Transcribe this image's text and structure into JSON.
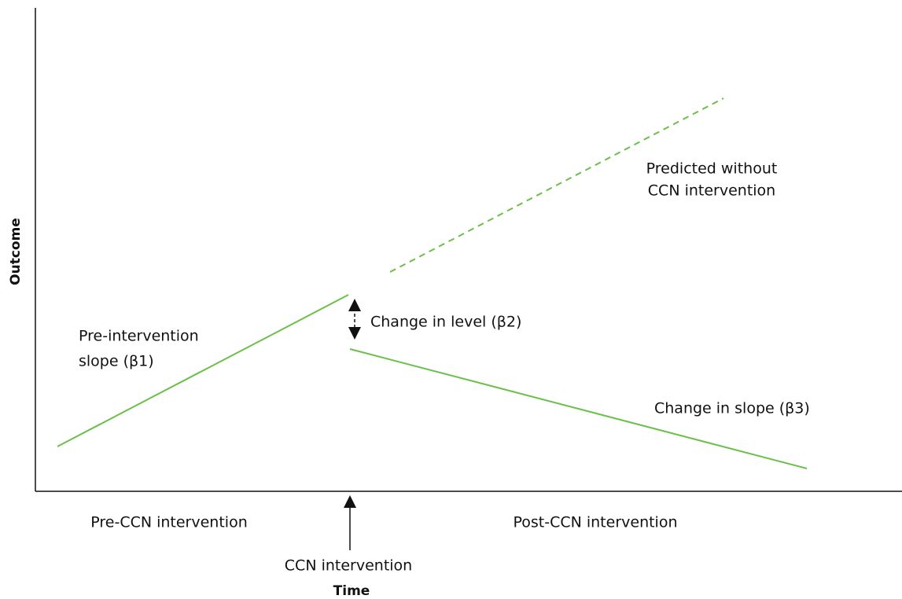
{
  "axes": {
    "y_label": "Outcome",
    "x_label": "Time"
  },
  "periods": {
    "pre": "Pre-CCN intervention",
    "post": "Post-CCN intervention",
    "intervention": "CCN intervention"
  },
  "annotations": {
    "pre_slope": [
      "Pre-intervention",
      "slope (β1)"
    ],
    "level_change": "Change in level (β2)",
    "counterfactual": [
      "Predicted without",
      "CCN intervention"
    ],
    "slope_change": "Change in slope (β3)"
  }
}
